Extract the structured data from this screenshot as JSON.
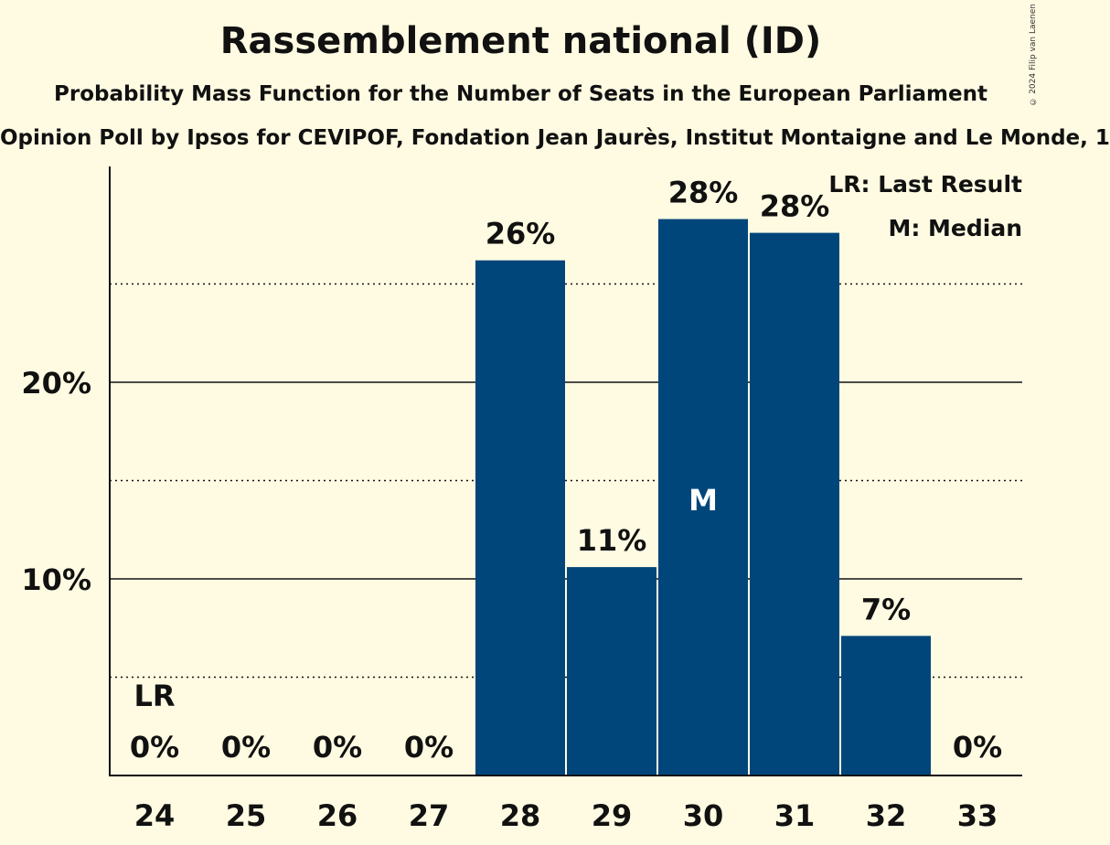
{
  "chart_data": {
    "type": "bar",
    "title": "Rassemblement national (ID)",
    "subtitle": "Probability Mass Function for the Number of Seats in the European Parliament",
    "subtitle2": "Opinion Poll by Ipsos for CEVIPOF, Fondation Jean Jaurès, Institut Montaigne and Le Monde, 1",
    "categories": [
      "24",
      "25",
      "26",
      "27",
      "28",
      "29",
      "30",
      "31",
      "32",
      "33"
    ],
    "values": [
      0,
      0,
      0,
      0,
      26.2,
      10.6,
      28.3,
      27.6,
      7.1,
      0
    ],
    "labels": [
      "0%",
      "0%",
      "0%",
      "0%",
      "26%",
      "11%",
      "28%",
      "28%",
      "7%",
      "0%"
    ],
    "y_ticks": [
      {
        "value": 10,
        "label": "10%"
      },
      {
        "value": 20,
        "label": "20%"
      }
    ],
    "dotted_grid": [
      5,
      15,
      25
    ],
    "ylim": [
      0,
      31
    ],
    "last_result_category": "24",
    "last_result_marker": "LR",
    "median_category": "30",
    "median_marker": "M",
    "legend": [
      "LR: Last Result",
      "M: Median"
    ],
    "legend_position": "top-right",
    "bar_color": "#00467a",
    "copyright": "© 2024 Filip van Laenen"
  }
}
